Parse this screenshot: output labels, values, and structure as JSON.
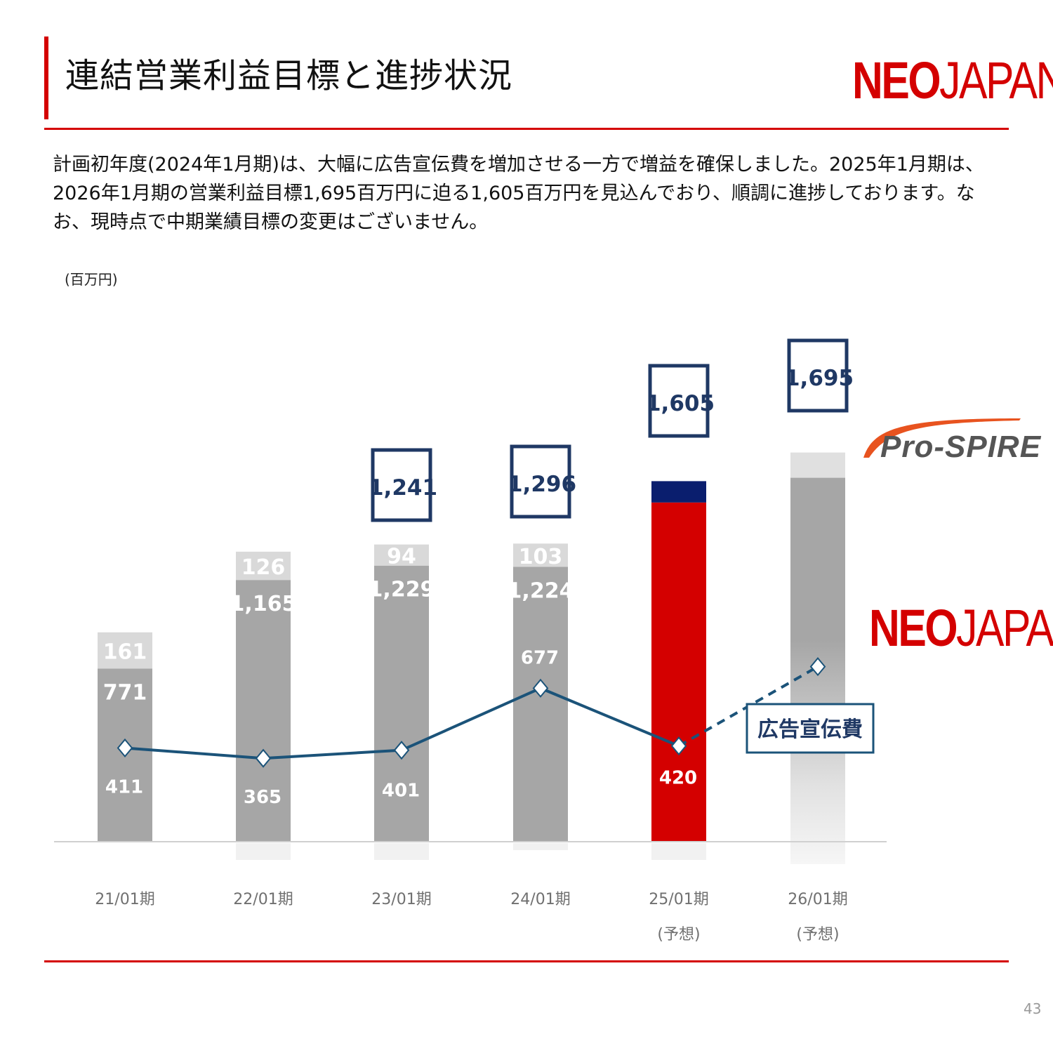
{
  "header": {
    "title": "連結営業利益目標と進捗状況",
    "logo_bold": "NEO",
    "logo_light": "JAPAN",
    "description": "計画初年度(2024年1月期)は、大幅に広告宣伝費を増加させる一方で増益を確保しました。2025年1月期は、2026年1月期の営業利益目標1,695百万円に迫る1,605百万円を見込んでおり、順調に進捗しております。なお、現時点で中期業績目標の変更はございません。"
  },
  "unit_label": "(百万円)",
  "side_logos": {
    "prospire": "Pro-SPIRE",
    "neojapan_bold": "NEO",
    "neojapan_light": "JAPAN"
  },
  "legend_box": "広告宣伝費",
  "page_number": "43",
  "colors": {
    "brand_red": "#d40000",
    "bar_gray": "#a6a6a6",
    "bar_light": "#d9d9d9",
    "navy": "#0a1e6e",
    "line_blue": "#1b5379",
    "box_border": "#1f3864"
  },
  "chart_data": {
    "type": "bar",
    "categories": [
      "21/01期",
      "22/01期",
      "23/01期",
      "24/01期",
      "25/01期",
      "26/01期"
    ],
    "category_notes": [
      "",
      "",
      "",
      "",
      "(予想)",
      "(予想)"
    ],
    "series": [
      {
        "values": [
          771,
          1165,
          1229,
          1224,
          null,
          null
        ]
      },
      {
        "values": [
          161,
          126,
          94,
          103,
          null,
          null
        ]
      },
      {
        "values": [
          411,
          365,
          401,
          677,
          420,
          null
        ]
      }
    ],
    "totals": [
      null,
      null,
      1241,
      1296,
      1605,
      1695
    ],
    "forecast_bar_25": {
      "red_part": 1510,
      "navy_part": 95
    },
    "data_labels": {
      "base": [
        "771",
        "1,165",
        "1,229",
        "1,224",
        "",
        ""
      ],
      "top": [
        "161",
        "126",
        "94",
        "103",
        "",
        ""
      ],
      "line": [
        "411",
        "365",
        "401",
        "677",
        "420",
        ""
      ],
      "totals": [
        "",
        "",
        "1,241",
        "1,296",
        "1,605",
        "1,695"
      ]
    },
    "line_forecast_26": 770,
    "ylim": [
      0,
      1900
    ],
    "grid": false
  }
}
